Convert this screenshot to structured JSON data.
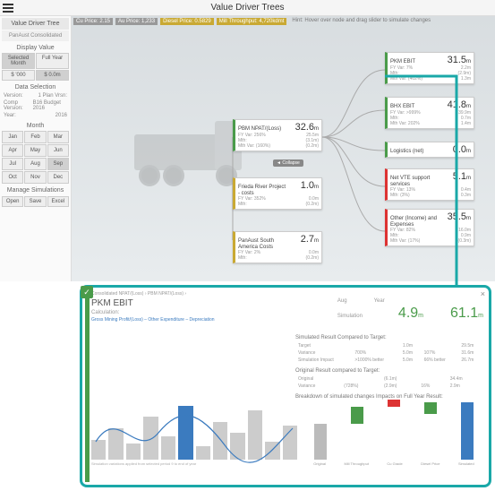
{
  "title": "Value Driver Trees",
  "sidebar": {
    "head": "Value Driver Tree",
    "sub": "PanAust Consolidated",
    "display": "Display Value",
    "period": [
      "Selected Month",
      "Full Year"
    ],
    "currency": [
      "$ '000",
      "$ 0.0m"
    ],
    "datasel": "Data Selection",
    "kv": [
      [
        "Version:",
        "1 Plan Vrsn:"
      ],
      [
        "Comp Version:",
        "B16 Budget 2016"
      ],
      [
        "Year:",
        "2016"
      ]
    ],
    "month": "Month",
    "months": [
      "Jan",
      "Feb",
      "Mar",
      "Apr",
      "May",
      "Jun",
      "Jul",
      "Aug",
      "Sep",
      "Oct",
      "Nov",
      "Dec"
    ],
    "selMonth": "Sep",
    "manage": "Manage Simulations",
    "actions": [
      "Open",
      "Save",
      "Excel"
    ]
  },
  "kpis": [
    {
      "t": "Cu Price: 2.15",
      "c": ""
    },
    {
      "t": "Au Price: 1,233",
      "c": ""
    },
    {
      "t": "Diesel Price: 0.5829",
      "c": "y"
    },
    {
      "t": "Mill Throughput: 4,720kdmt",
      "c": "y"
    }
  ],
  "hint": "Hint: Hover over node and drag slider to simulate changes",
  "collapse": "◄ Collapse",
  "nodes": {
    "pbm": {
      "t": "PBM NPAT/(Loss)",
      "v": "32.6",
      "u": "m",
      "r": [
        [
          "FY Var:",
          "256%",
          "25.5m"
        ],
        [
          "Mth:",
          "",
          "(3.1m)"
        ],
        [
          "Mth Var:",
          "(160%)",
          "(0.2m)"
        ]
      ]
    },
    "frp": {
      "t": "Frieda River Project - costs",
      "v": "1.0",
      "u": "m",
      "r": [
        [
          "FY Var:",
          "352%",
          "0.0m"
        ],
        [
          "Mth:",
          "",
          "(0.2m)"
        ]
      ]
    },
    "psa": {
      "t": "PanAust South America Costs",
      "v": "2.7",
      "u": "m",
      "r": [
        [
          "FY Var:",
          "2%",
          "0.0m"
        ],
        [
          "Mth:",
          "",
          "(0.2m)"
        ]
      ]
    },
    "pkm": {
      "t": "PKM EBIT",
      "v": "31.5",
      "u": "m",
      "r": [
        [
          "FY Var:",
          "7%",
          "2.2m"
        ],
        [
          "Mth:",
          "",
          "(2.9m)"
        ],
        [
          "Mth Var:",
          "(402%)",
          "1.3m"
        ]
      ]
    },
    "bhx": {
      "t": "BHX EBIT",
      "v": "41.8",
      "u": "m",
      "r": [
        [
          "FY Var:",
          ">999%",
          "39.9m"
        ],
        [
          "Mth:",
          "",
          "0.7m"
        ],
        [
          "Mth Var:",
          "202%",
          "1.4m"
        ]
      ]
    },
    "log": {
      "t": "Logistics (net)",
      "v": "0.0",
      "u": "m",
      "r": []
    },
    "vte": {
      "t": "Net VTE support services",
      "v": "5.1",
      "u": "m",
      "r": [
        [
          "FY Var:",
          "13%",
          "0.4m"
        ],
        [
          "Mth:",
          "(3%)",
          "0.3m"
        ]
      ]
    },
    "oth": {
      "t": "Other (Income) and Expenses",
      "v": "35.5",
      "u": "m",
      "r": [
        [
          "FY Var:",
          "82%",
          "16.0m"
        ],
        [
          "Mth:",
          "",
          "0.9m"
        ],
        [
          "Mth Var:",
          "(17%)",
          "(0.3m)"
        ]
      ]
    }
  },
  "detail": {
    "bc": "Consolidated NPAT/(Loss)  ›  PBM NPAT/(Loss)  ›",
    "title": "PKM EBIT",
    "calcl": "Calculation:",
    "calc": "Gross Mining Profit/(Loss) – Other Expenditure – Depreciation",
    "cols": [
      "Aug",
      "Year"
    ],
    "siml": "Simulation",
    "sim": [
      "4.9",
      "61.1"
    ],
    "simu": "m",
    "sec1": "Simulated Result Compared to Target:",
    "t1": [
      [
        "Target",
        "",
        "1.0m",
        "",
        "29.5m"
      ],
      [
        "Variance",
        "700%",
        "5.0m",
        "107%",
        "31.6m"
      ],
      [
        "Simulation Impact",
        ">1000% better",
        "5.0m",
        "66% better",
        "26.7m"
      ]
    ],
    "sec2": "Original Result compared to Target:",
    "t2": [
      [
        "Original",
        "",
        "(6.1m)",
        "",
        "34.4m"
      ],
      [
        "Variance",
        "(728%)",
        "(2.9m)",
        "16%",
        "2.9m"
      ]
    ],
    "sec3": "Breakdown of simulated changes Impacts on Full Year Result:",
    "barsH": [
      22,
      35,
      18,
      48,
      26,
      60,
      15,
      42,
      30,
      55,
      20,
      38
    ],
    "barsB": [
      0,
      0,
      0,
      0,
      0,
      1,
      0,
      0,
      0,
      0,
      0,
      0
    ],
    "wf": [
      [
        "Original",
        "#bbb",
        0,
        25
      ],
      [
        "Mill Throughput",
        "#4a9b4a",
        25,
        12
      ],
      [
        "Cu Grade",
        "#d33",
        37,
        -5
      ],
      [
        "Diesel Price",
        "#4a9b4a",
        32,
        8
      ],
      [
        "Simulated",
        "#3b7bbf",
        0,
        40
      ]
    ],
    "foot": "Simulation variations applied from selected period 9 to end of year"
  }
}
